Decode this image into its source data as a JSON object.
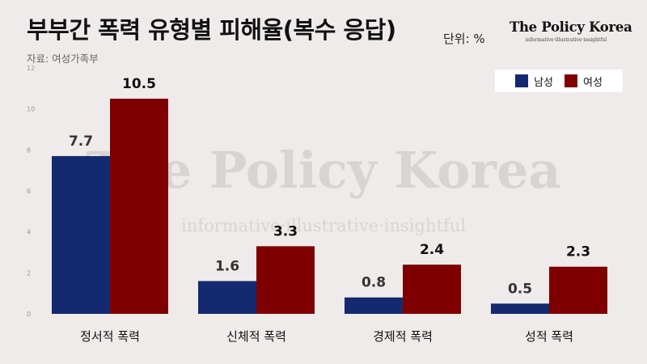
{
  "header": {
    "title": "부부간 폭력 유형별 피해율(복수 응답)",
    "unit": "단위: %",
    "source": "자료: 여성가족부"
  },
  "brand": {
    "name": "The Policy Korea",
    "tagline": "informative·illustrative·insightful"
  },
  "colors": {
    "male": "#14296f",
    "female": "#7f0000",
    "background": "#efebea"
  },
  "chart_data": {
    "type": "bar",
    "categories": [
      "정서적 폭력",
      "신체적 폭력",
      "경제적 폭력",
      "성적 폭력"
    ],
    "series": [
      {
        "name": "남성",
        "values": [
          7.7,
          1.6,
          0.8,
          0.5
        ]
      },
      {
        "name": "여성",
        "values": [
          10.5,
          3.3,
          2.4,
          2.3
        ]
      }
    ],
    "yticks": [
      "0",
      "2",
      "4",
      "6",
      "8",
      "10",
      "12"
    ],
    "ylim": [
      0,
      12
    ],
    "grid": false,
    "legend": "top-right"
  }
}
